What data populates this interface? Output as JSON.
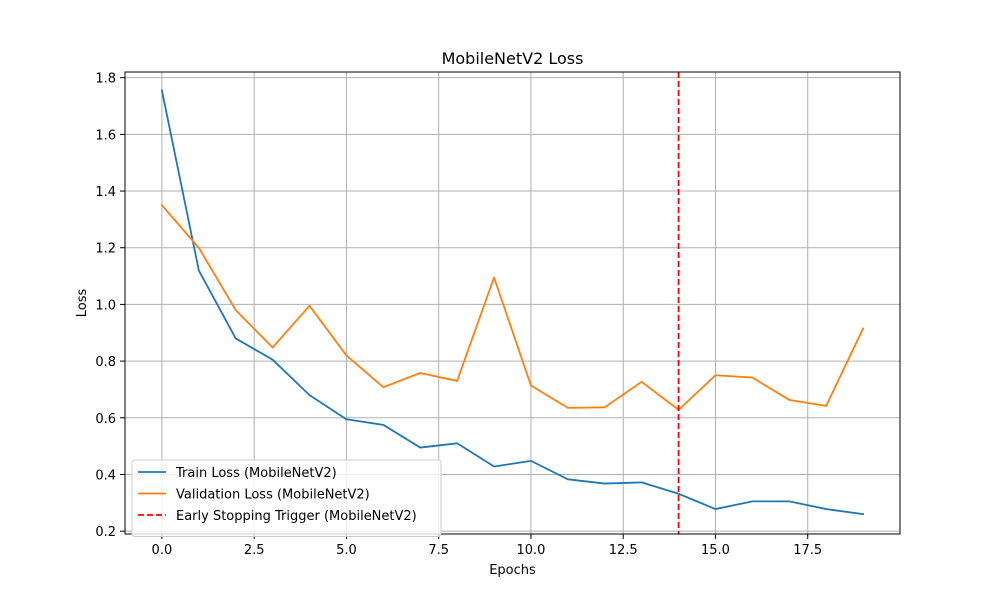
{
  "chart_data": {
    "type": "line",
    "title": "MobileNetV2 Loss",
    "xlabel": "Epochs",
    "ylabel": "Loss",
    "xlim": [
      -1,
      20
    ],
    "ylim": [
      0.19,
      1.82
    ],
    "x_ticks": [
      0.0,
      2.5,
      5.0,
      7.5,
      10.0,
      12.5,
      15.0,
      17.5
    ],
    "x_tick_labels": [
      "0.0",
      "2.5",
      "5.0",
      "7.5",
      "10.0",
      "12.5",
      "15.0",
      "17.5"
    ],
    "y_ticks": [
      0.2,
      0.4,
      0.6,
      0.8,
      1.0,
      1.2,
      1.4,
      1.6,
      1.8
    ],
    "y_tick_labels": [
      "0.2",
      "0.4",
      "0.6",
      "0.8",
      "1.0",
      "1.2",
      "1.4",
      "1.6",
      "1.8"
    ],
    "grid": true,
    "legend_position": "lower-left",
    "x": [
      0,
      1,
      2,
      3,
      4,
      5,
      6,
      7,
      8,
      9,
      10,
      11,
      12,
      13,
      14,
      15,
      16,
      17,
      18,
      19
    ],
    "series": [
      {
        "name": "Train Loss (MobileNetV2)",
        "color": "#1f77b4",
        "values": [
          1.755,
          1.12,
          0.88,
          0.805,
          0.68,
          0.595,
          0.575,
          0.495,
          0.51,
          0.428,
          0.448,
          0.383,
          0.368,
          0.372,
          0.332,
          0.278,
          0.305,
          0.305,
          0.278,
          0.26
        ]
      },
      {
        "name": "Validation Loss (MobileNetV2)",
        "color": "#ff7f0e",
        "values": [
          1.35,
          1.2,
          0.98,
          0.848,
          0.995,
          0.82,
          0.708,
          0.758,
          0.73,
          1.095,
          0.714,
          0.635,
          0.637,
          0.727,
          0.628,
          0.75,
          0.742,
          0.663,
          0.642,
          0.915
        ]
      }
    ],
    "vlines": [
      {
        "name": "Early Stopping Trigger (MobileNetV2)",
        "x": 14,
        "color": "#ff0000",
        "style": "dashed"
      }
    ]
  }
}
